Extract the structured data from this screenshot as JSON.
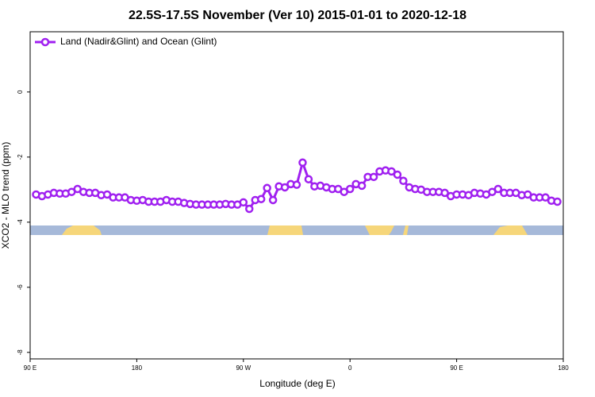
{
  "chart_data": {
    "type": "line",
    "title": "22.5S-17.5S November (Ver 10)   2015-01-01 to 2020-12-18",
    "x_label": "Longitude (deg E)",
    "y_label": "XCO2 - MLO trend (ppm)",
    "legend": "top-left",
    "xlim": [
      90,
      540
    ],
    "ylim": [
      -8.2,
      1.85
    ],
    "xticks": [
      {
        "value": 90,
        "label": "90 E"
      },
      180,
      {
        "value": 270,
        "label": "90 W"
      },
      {
        "value": 360,
        "label": "0"
      },
      {
        "value": 450,
        "label": "90 E"
      },
      {
        "value": 540,
        "label": "180"
      }
    ],
    "yticks": [
      0,
      -2,
      -4,
      -6,
      -8
    ],
    "x": [
      95,
      100,
      105,
      110,
      115,
      120,
      125,
      130,
      135,
      140,
      145,
      150,
      155,
      160,
      165,
      170,
      175,
      180,
      185,
      190,
      195,
      200,
      205,
      210,
      215,
      220,
      225,
      230,
      235,
      240,
      245,
      250,
      255,
      260,
      265,
      270,
      275,
      280,
      285,
      290,
      295,
      300,
      305,
      310,
      315,
      320,
      325,
      330,
      335,
      340,
      345,
      350,
      355,
      360,
      365,
      370,
      375,
      380,
      385,
      390,
      395,
      400,
      405,
      410,
      415,
      420,
      425,
      430,
      435,
      440,
      445,
      450,
      455,
      460,
      465,
      470,
      475,
      480,
      485,
      490,
      495,
      500,
      505,
      510,
      515,
      520,
      525,
      530,
      535
    ],
    "series": [
      {
        "name": "Land (Nadir&Glint) and Ocean (Glint)",
        "color": "#a020f0",
        "values": [
          -3.15,
          -3.2,
          -3.15,
          -3.1,
          -3.12,
          -3.12,
          -3.07,
          -2.98,
          -3.07,
          -3.1,
          -3.1,
          -3.17,
          -3.15,
          -3.24,
          -3.24,
          -3.24,
          -3.32,
          -3.34,
          -3.32,
          -3.37,
          -3.37,
          -3.37,
          -3.32,
          -3.37,
          -3.37,
          -3.41,
          -3.44,
          -3.46,
          -3.46,
          -3.46,
          -3.46,
          -3.46,
          -3.44,
          -3.46,
          -3.46,
          -3.39,
          -3.59,
          -3.32,
          -3.29,
          -2.95,
          -3.32,
          -2.9,
          -2.93,
          -2.83,
          -2.85,
          -2.17,
          -2.68,
          -2.9,
          -2.88,
          -2.93,
          -2.98,
          -2.98,
          -3.07,
          -2.98,
          -2.83,
          -2.88,
          -2.61,
          -2.61,
          -2.44,
          -2.41,
          -2.44,
          -2.54,
          -2.73,
          -2.93,
          -2.98,
          -3.0,
          -3.07,
          -3.07,
          -3.07,
          -3.1,
          -3.2,
          -3.15,
          -3.15,
          -3.17,
          -3.1,
          -3.12,
          -3.15,
          -3.07,
          -2.98,
          -3.1,
          -3.1,
          -3.1,
          -3.17,
          -3.15,
          -3.24,
          -3.24,
          -3.24,
          -3.34,
          -3.37
        ]
      }
    ]
  }
}
